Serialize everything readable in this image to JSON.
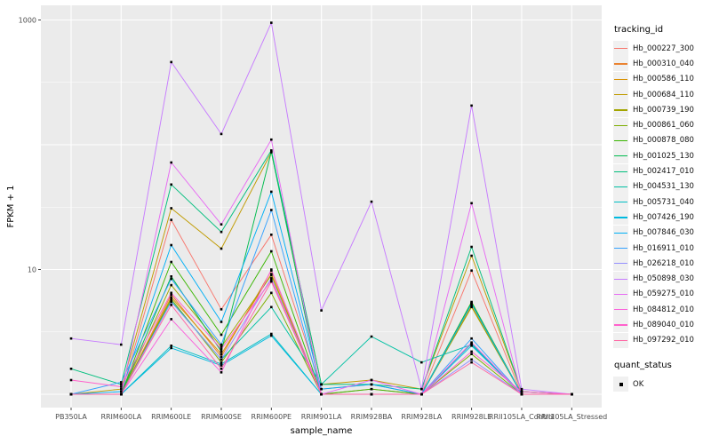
{
  "chart_data": {
    "type": "line",
    "title": "",
    "xlabel": "sample_name",
    "ylabel": "FPKM + 1",
    "y_scale": "log10",
    "ylim": [
      0.78,
      1300
    ],
    "y_labeled_ticks": [
      1000,
      10
    ],
    "y_major_gridlines": [
      1,
      10,
      100,
      1000
    ],
    "y_minor_gridlines": [
      3.1623,
      31.623,
      316.23
    ],
    "grid": "on",
    "panel_bg": "#EBEBEB",
    "gridline_color": "#FFFFFF",
    "point_color": "#000000",
    "legend_position": "right",
    "categories": [
      "PB350LA",
      "RRIM600LA",
      "RRIM600LE",
      "RRIM600SE",
      "RRIM600PE",
      "RRIM901LA",
      "RRIM928BA",
      "RRIM928LA",
      "RRIM928LE",
      "RRII105LA_Control",
      "RRII105LA_Stressed"
    ],
    "series": [
      {
        "name": "Hb_000227_300",
        "color": "#F8766D",
        "values": [
          1.0,
          1.0,
          25,
          4.8,
          19,
          1.1,
          1.2,
          1.0,
          9.8,
          1.0,
          1.0
        ]
      },
      {
        "name": "Hb_000310_040",
        "color": "#EA8331",
        "values": [
          1.0,
          1.0,
          6.3,
          2.0,
          9.8,
          1.0,
          1.1,
          1.0,
          5.3,
          1.0,
          1.0
        ]
      },
      {
        "name": "Hb_000586_110",
        "color": "#D89000",
        "values": [
          1.0,
          1.0,
          6.0,
          2.1,
          9.2,
          1.0,
          1.0,
          1.0,
          5.1,
          1.0,
          1.0
        ]
      },
      {
        "name": "Hb_000684_110",
        "color": "#C09B00",
        "values": [
          1.0,
          1.1,
          31,
          14.7,
          87,
          1.2,
          1.3,
          1.1,
          12.9,
          1.05,
          1.0
        ]
      },
      {
        "name": "Hb_000739_190",
        "color": "#A3A500",
        "values": [
          1.0,
          1.0,
          7.5,
          2.4,
          9.0,
          1.0,
          1.0,
          1.0,
          5.0,
          1.0,
          1.0
        ]
      },
      {
        "name": "Hb_000861_060",
        "color": "#7CAE00",
        "values": [
          1.0,
          1.0,
          5.8,
          1.8,
          6.5,
          1.0,
          1.0,
          1.0,
          2.1,
          1.0,
          1.0
        ]
      },
      {
        "name": "Hb_000878_080",
        "color": "#39B600",
        "values": [
          1.0,
          1.0,
          11.5,
          3.0,
          14,
          1.0,
          1.1,
          1.0,
          5.5,
          1.0,
          1.0
        ]
      },
      {
        "name": "Hb_001025_130",
        "color": "#00BB4E",
        "values": [
          1.0,
          1.0,
          8.8,
          2.2,
          88,
          1.0,
          1.0,
          1.0,
          5.4,
          1.0,
          1.0
        ]
      },
      {
        "name": "Hb_002417_010",
        "color": "#00BF7D",
        "values": [
          1.6,
          1.2,
          48,
          20,
          90,
          1.2,
          1.2,
          1.1,
          15.2,
          1.05,
          1.0
        ]
      },
      {
        "name": "Hb_004531_130",
        "color": "#00C1A3",
        "values": [
          1.0,
          1.0,
          5.6,
          1.9,
          5.0,
          1.2,
          2.9,
          1.8,
          2.5,
          1.0,
          1.0
        ]
      },
      {
        "name": "Hb_005731_040",
        "color": "#00BFC4",
        "values": [
          1.0,
          1.0,
          2.45,
          1.75,
          3.05,
          1.0,
          1.0,
          1.0,
          2.55,
          1.0,
          1.0
        ]
      },
      {
        "name": "Hb_007426_190",
        "color": "#00BAE0",
        "values": [
          1.0,
          1.0,
          2.35,
          1.7,
          2.95,
          1.0,
          1.0,
          1.0,
          2.45,
          1.0,
          1.0
        ]
      },
      {
        "name": "Hb_007846_030",
        "color": "#00B0F6",
        "values": [
          1.0,
          1.05,
          15.7,
          3.8,
          42,
          1.1,
          1.2,
          1.0,
          5.3,
          1.0,
          1.0
        ]
      },
      {
        "name": "Hb_016911_010",
        "color": "#35A2FF",
        "values": [
          1.0,
          1.25,
          8.4,
          2.5,
          30,
          1.0,
          1.0,
          1.0,
          2.8,
          1.0,
          1.0
        ]
      },
      {
        "name": "Hb_026218_010",
        "color": "#9590FF",
        "values": [
          1.0,
          1.0,
          5.5,
          1.9,
          8.5,
          1.0,
          1.0,
          1.0,
          1.9,
          1.0,
          1.0
        ]
      },
      {
        "name": "Hb_050898_030",
        "color": "#C77CFF",
        "values": [
          2.8,
          2.5,
          460,
          122,
          950,
          4.7,
          35,
          1.1,
          206,
          1.1,
          1.0
        ]
      },
      {
        "name": "Hb_059275_010",
        "color": "#E76BF3",
        "values": [
          1.0,
          1.0,
          72,
          23,
          110,
          1.0,
          1.3,
          1.0,
          34,
          1.0,
          1.0
        ]
      },
      {
        "name": "Hb_084812_010",
        "color": "#FA62DB",
        "values": [
          1.0,
          1.0,
          4.0,
          1.5,
          10,
          1.0,
          1.0,
          1.0,
          2.6,
          1.0,
          1.0
        ]
      },
      {
        "name": "Hb_089040_010",
        "color": "#FF61CC",
        "values": [
          1.3,
          1.15,
          6.5,
          2.3,
          8.2,
          1.0,
          1.0,
          1.0,
          2.2,
          1.05,
          1.0
        ]
      },
      {
        "name": "Hb_097292_010",
        "color": "#FF67A4",
        "values": [
          1.0,
          1.0,
          5.2,
          1.6,
          8.0,
          1.0,
          1.0,
          1.0,
          1.8,
          1.0,
          1.0
        ]
      }
    ],
    "legend": {
      "tracking_title": "tracking_id",
      "quant_title": "quant_status",
      "quant_value": "OK"
    }
  }
}
